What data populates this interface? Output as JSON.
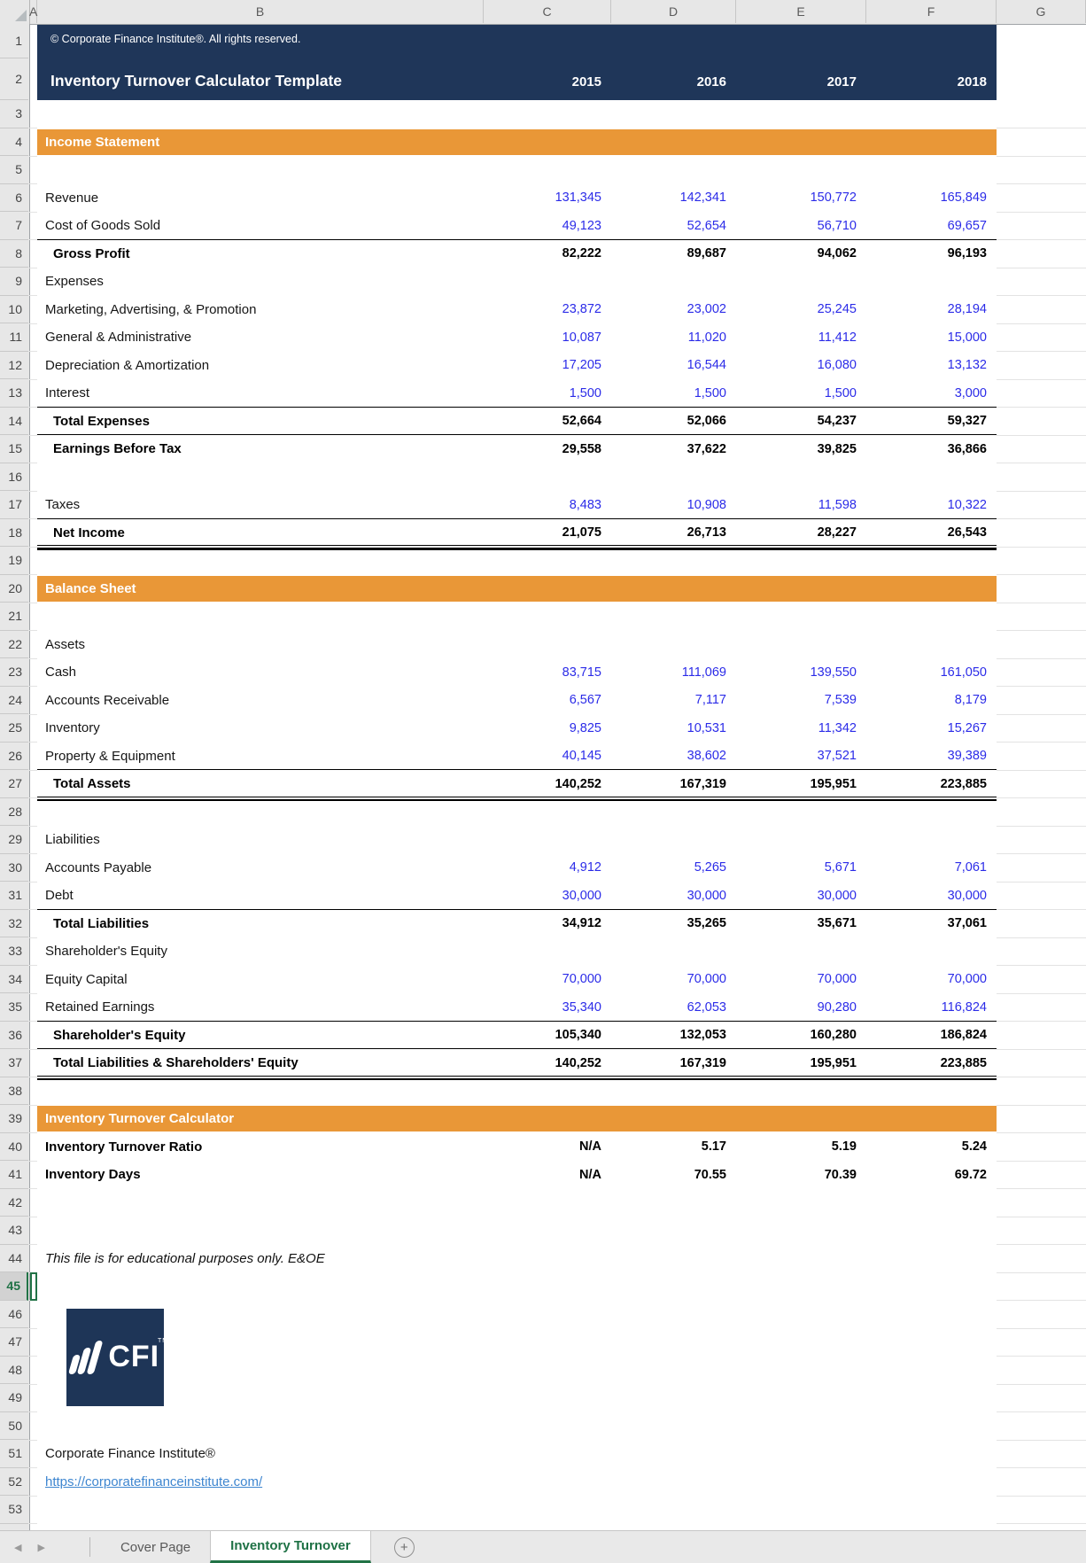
{
  "header": {
    "copyright": "© Corporate Finance Institute®. All rights reserved.",
    "title": "Inventory Turnover Calculator Template",
    "years": [
      "2015",
      "2016",
      "2017",
      "2018"
    ]
  },
  "columns": [
    "A",
    "B",
    "C",
    "D",
    "E",
    "F",
    "G"
  ],
  "row_count": 54,
  "selection": {
    "row": 45,
    "column": "A"
  },
  "rows": [
    {
      "n": 4,
      "type": "section",
      "label": "Income Statement"
    },
    {
      "n": 6,
      "type": "input",
      "label": "Revenue",
      "values": [
        "131,345",
        "142,341",
        "150,772",
        "165,849"
      ]
    },
    {
      "n": 7,
      "type": "input",
      "label": "Cost of Goods Sold",
      "values": [
        "49,123",
        "52,654",
        "56,710",
        "69,657"
      ]
    },
    {
      "n": 8,
      "type": "total",
      "label": "Gross Profit",
      "values": [
        "82,222",
        "89,687",
        "94,062",
        "96,193"
      ],
      "top_border": true
    },
    {
      "n": 9,
      "type": "plain",
      "label": "Expenses"
    },
    {
      "n": 10,
      "type": "input",
      "label": "Marketing, Advertising, & Promotion",
      "values": [
        "23,872",
        "23,002",
        "25,245",
        "28,194"
      ]
    },
    {
      "n": 11,
      "type": "input",
      "label": "General & Administrative",
      "values": [
        "10,087",
        "11,020",
        "11,412",
        "15,000"
      ]
    },
    {
      "n": 12,
      "type": "input",
      "label": "Depreciation & Amortization",
      "values": [
        "17,205",
        "16,544",
        "16,080",
        "13,132"
      ]
    },
    {
      "n": 13,
      "type": "input",
      "label": "Interest",
      "values": [
        "1,500",
        "1,500",
        "1,500",
        "3,000"
      ]
    },
    {
      "n": 14,
      "type": "total",
      "label": "Total Expenses",
      "values": [
        "52,664",
        "52,066",
        "54,237",
        "59,327"
      ],
      "top_border": true
    },
    {
      "n": 15,
      "type": "total",
      "label": "Earnings Before Tax",
      "values": [
        "29,558",
        "37,622",
        "39,825",
        "36,866"
      ],
      "top_border": true
    },
    {
      "n": 17,
      "type": "input",
      "label": "Taxes",
      "values": [
        "8,483",
        "10,908",
        "11,598",
        "10,322"
      ]
    },
    {
      "n": 18,
      "type": "total",
      "label": "Net Income",
      "values": [
        "21,075",
        "26,713",
        "28,227",
        "26,543"
      ],
      "top_border": true,
      "bottom_border": "double"
    },
    {
      "n": 20,
      "type": "section",
      "label": "Balance Sheet"
    },
    {
      "n": 22,
      "type": "plain",
      "label": "Assets"
    },
    {
      "n": 23,
      "type": "input",
      "label": "Cash",
      "values": [
        "83,715",
        "111,069",
        "139,550",
        "161,050"
      ]
    },
    {
      "n": 24,
      "type": "input",
      "label": "Accounts Receivable",
      "values": [
        "6,567",
        "7,117",
        "7,539",
        "8,179"
      ]
    },
    {
      "n": 25,
      "type": "input",
      "label": "Inventory",
      "values": [
        "9,825",
        "10,531",
        "11,342",
        "15,267"
      ]
    },
    {
      "n": 26,
      "type": "input",
      "label": "Property & Equipment",
      "values": [
        "40,145",
        "38,602",
        "37,521",
        "39,389"
      ]
    },
    {
      "n": 27,
      "type": "total",
      "label": "Total Assets",
      "values": [
        "140,252",
        "167,319",
        "195,951",
        "223,885"
      ],
      "top_border": true,
      "bottom_border": "double"
    },
    {
      "n": 29,
      "type": "plain",
      "label": "Liabilities"
    },
    {
      "n": 30,
      "type": "input",
      "label": "Accounts Payable",
      "values": [
        "4,912",
        "5,265",
        "5,671",
        "7,061"
      ]
    },
    {
      "n": 31,
      "type": "input",
      "label": "Debt",
      "values": [
        "30,000",
        "30,000",
        "30,000",
        "30,000"
      ]
    },
    {
      "n": 32,
      "type": "total",
      "label": "Total Liabilities",
      "values": [
        "34,912",
        "35,265",
        "35,671",
        "37,061"
      ],
      "top_border": true
    },
    {
      "n": 33,
      "type": "plain",
      "label": "Shareholder's Equity"
    },
    {
      "n": 34,
      "type": "input",
      "label": "Equity Capital",
      "values": [
        "70,000",
        "70,000",
        "70,000",
        "70,000"
      ]
    },
    {
      "n": 35,
      "type": "input",
      "label": "Retained Earnings",
      "values": [
        "35,340",
        "62,053",
        "90,280",
        "116,824"
      ]
    },
    {
      "n": 36,
      "type": "total",
      "label": "Shareholder's Equity",
      "values": [
        "105,340",
        "132,053",
        "160,280",
        "186,824"
      ],
      "top_border": true
    },
    {
      "n": 37,
      "type": "total",
      "label": "Total Liabilities & Shareholders' Equity",
      "values": [
        "140,252",
        "167,319",
        "195,951",
        "223,885"
      ],
      "top_border": true,
      "bottom_border": "double"
    },
    {
      "n": 39,
      "type": "section",
      "label": "Inventory Turnover Calculator"
    },
    {
      "n": 40,
      "type": "calc",
      "label": "Inventory Turnover Ratio",
      "values": [
        "N/A",
        "5.17",
        "5.19",
        "5.24"
      ]
    },
    {
      "n": 41,
      "type": "calc",
      "label": "Inventory Days",
      "values": [
        "N/A",
        "70.55",
        "70.39",
        "69.72"
      ]
    }
  ],
  "footer": {
    "note": "This file is for educational purposes only. E&OE",
    "company": "Corporate Finance Institute®",
    "link": "https://corporatefinanceinstitute.com/"
  },
  "logo": {
    "text": "CFI",
    "tm": "TM"
  },
  "tabs": {
    "items": [
      {
        "label": "Cover Page",
        "active": false
      },
      {
        "label": "Inventory Turnover",
        "active": true
      }
    ],
    "add_label": "+"
  },
  "colors": {
    "navy": "#1F3659",
    "orange": "#E99737",
    "input_blue": "#2B2BE8",
    "excel_green": "#217346",
    "link_blue": "#3E86D0"
  }
}
